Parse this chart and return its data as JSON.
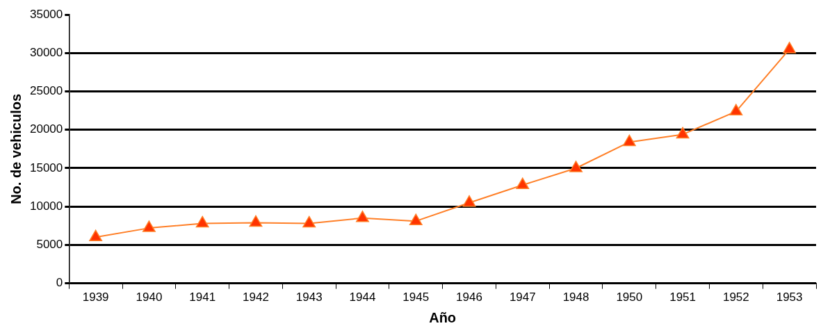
{
  "chart_data": {
    "type": "line",
    "xlabel": "Año",
    "ylabel": "No. de vehiculos",
    "categories": [
      "1939",
      "1940",
      "1941",
      "1942",
      "1943",
      "1944",
      "1945",
      "1946",
      "1947",
      "1948",
      "1950",
      "1951",
      "1952",
      "1953"
    ],
    "series": [
      {
        "color": "#ff7f27",
        "values": [
          6000,
          7200,
          7800,
          7900,
          7800,
          8500,
          8100,
          10500,
          12800,
          15000,
          18400,
          19400,
          22400,
          30500
        ]
      }
    ],
    "ylim": [
      0,
      35000
    ],
    "yticks": [
      0,
      5000,
      10000,
      15000,
      20000,
      25000,
      30000,
      35000
    ],
    "grid": "y",
    "legend": false,
    "marker": "triangle",
    "line_style": "solid"
  }
}
